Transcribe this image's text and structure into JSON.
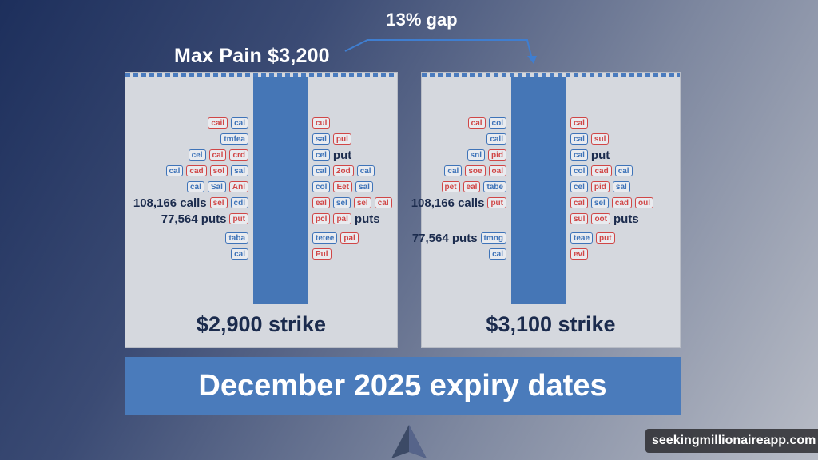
{
  "header": {
    "gap_label": "13% gap",
    "max_pain_label": "Max Pain $3,200"
  },
  "panels": [
    {
      "strike_label": "$2,900 strike",
      "calls_label": "108,166 calls",
      "puts_label": "77,564 puts",
      "put_text": "put",
      "puts_text": "puts",
      "left_rows": [
        [
          [
            "cail",
            "red"
          ],
          [
            "cal",
            "blue"
          ]
        ],
        [
          [
            "tmfea",
            "blue"
          ]
        ],
        [
          [
            "cel",
            "blue"
          ],
          [
            "cal",
            "red"
          ],
          [
            "crd",
            "red"
          ]
        ],
        [
          [
            "cal",
            "blue"
          ],
          [
            "cad",
            "red"
          ],
          [
            "sol",
            "red"
          ],
          [
            "sal",
            "blue"
          ]
        ],
        [
          [
            "cal",
            "blue"
          ],
          [
            "Sal",
            "blue"
          ],
          [
            "Anl",
            "red"
          ]
        ],
        [
          [
            "sel",
            "red"
          ],
          [
            "cdl",
            "blue"
          ]
        ],
        [
          [
            "put",
            "red"
          ]
        ],
        [
          [
            "taba",
            "blue"
          ]
        ],
        [
          [
            "cal",
            "blue"
          ]
        ]
      ],
      "right_rows": [
        [
          [
            "cul",
            "red"
          ]
        ],
        [
          [
            "sal",
            "blue"
          ],
          [
            "pul",
            "red"
          ]
        ],
        [
          [
            "cel",
            "blue"
          ]
        ],
        [
          [
            "cal",
            "blue"
          ],
          [
            "2od",
            "red"
          ],
          [
            "cal",
            "blue"
          ]
        ],
        [
          [
            "col",
            "blue"
          ],
          [
            "Eet",
            "red"
          ],
          [
            "sal",
            "blue"
          ]
        ],
        [
          [
            "eal",
            "red"
          ],
          [
            "sel",
            "blue"
          ],
          [
            "sel",
            "red"
          ],
          [
            "cal",
            "red"
          ]
        ],
        [
          [
            "pcl",
            "red"
          ],
          [
            "pal",
            "red"
          ]
        ],
        [
          [
            "tetee",
            "blue"
          ],
          [
            "pal",
            "red"
          ]
        ],
        [
          [
            "Pul",
            "red"
          ]
        ]
      ]
    },
    {
      "strike_label": "$3,100 strike",
      "calls_label": "108,166 calls",
      "puts_label": "77,564 puts",
      "put_text": "put",
      "puts_text": "puts",
      "left_rows": [
        [
          [
            "cal",
            "red"
          ],
          [
            "col",
            "blue"
          ]
        ],
        [
          [
            "call",
            "blue"
          ]
        ],
        [
          [
            "snl",
            "blue"
          ],
          [
            "pid",
            "red"
          ]
        ],
        [
          [
            "cal",
            "blue"
          ],
          [
            "soe",
            "red"
          ],
          [
            "oal",
            "red"
          ]
        ],
        [
          [
            "pet",
            "red"
          ],
          [
            "eal",
            "red"
          ],
          [
            "tabe",
            "blue"
          ]
        ],
        [
          [
            "put",
            "red"
          ]
        ],
        [
          [
            "tmng",
            "blue"
          ]
        ],
        [
          [
            "cal",
            "blue"
          ]
        ]
      ],
      "right_rows": [
        [
          [
            "cal",
            "red"
          ]
        ],
        [
          [
            "cal",
            "blue"
          ],
          [
            "sul",
            "red"
          ]
        ],
        [
          [
            "cal",
            "blue"
          ]
        ],
        [
          [
            "col",
            "blue"
          ],
          [
            "cad",
            "red"
          ],
          [
            "cal",
            "blue"
          ]
        ],
        [
          [
            "cel",
            "blue"
          ],
          [
            "pid",
            "red"
          ],
          [
            "sal",
            "blue"
          ]
        ],
        [
          [
            "cal",
            "red"
          ],
          [
            "sel",
            "blue"
          ],
          [
            "cad",
            "red"
          ],
          [
            "oul",
            "red"
          ]
        ],
        [
          [
            "sul",
            "red"
          ],
          [
            "oot",
            "red"
          ]
        ],
        [
          [
            "teae",
            "blue"
          ],
          [
            "put",
            "red"
          ]
        ],
        [
          [
            "evl",
            "red"
          ]
        ]
      ]
    }
  ],
  "banner": {
    "text": "December 2025 expiry dates"
  },
  "watermark": {
    "text": "seekingmillionaireapp.com"
  },
  "colors": {
    "accent_blue": "#4a7bbb",
    "call_blue": "#3e73b8",
    "put_red": "#d04646",
    "navy_text": "#1b2b4d"
  }
}
